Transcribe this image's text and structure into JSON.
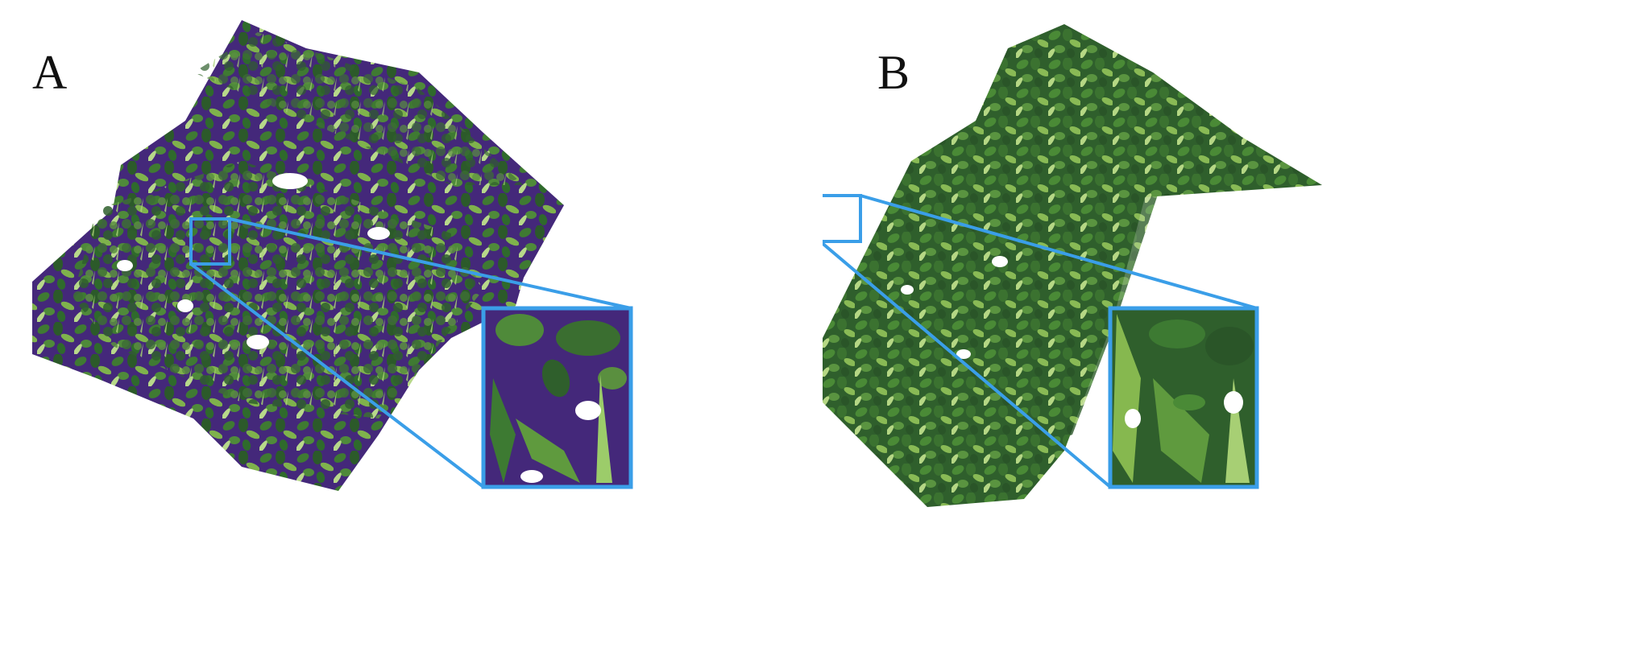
{
  "panels": [
    {
      "label": "A"
    },
    {
      "label": "B"
    }
  ],
  "colors": {
    "background": "#ffffff",
    "mesh_fill_a": "#44287a",
    "leaf_dark": "#2c5a2a",
    "leaf_mid": "#3f7a32",
    "leaf_light": "#7fb24c",
    "leaf_pale": "#b7d88a",
    "highlight_box": "#3a9ee8"
  },
  "icons": [
    "zoom-box",
    "zoom-inset"
  ]
}
